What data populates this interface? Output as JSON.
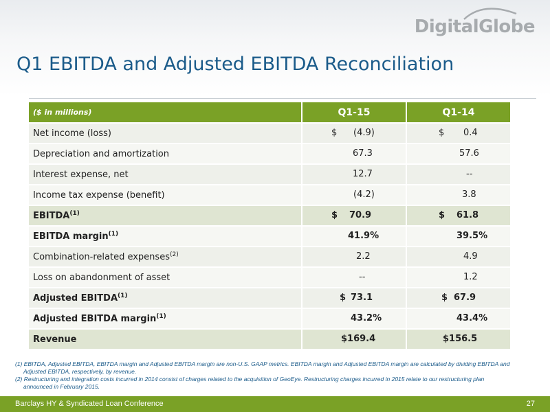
{
  "brand": {
    "logo_text": "DigitalGlobe"
  },
  "title": "Q1 EBITDA and Adjusted EBITDA Reconciliation",
  "table": {
    "header": {
      "label": "($ in millions)",
      "col1": "Q1-15",
      "col2": "Q1-14"
    },
    "rows": [
      {
        "label": "Net income (loss)",
        "sup": "",
        "c1_cur": "$",
        "c1": "(4.9)",
        "c2_cur": "$",
        "c2": "0.4"
      },
      {
        "label": "Depreciation and amortization",
        "sup": "",
        "c1_cur": "",
        "c1": "67.3",
        "c2_cur": "",
        "c2": "57.6"
      },
      {
        "label": "Interest expense, net",
        "sup": "",
        "c1_cur": "",
        "c1": "12.7",
        "c2_cur": "",
        "c2": "--"
      },
      {
        "label": "Income tax expense (benefit)",
        "sup": "",
        "c1_cur": "",
        "c1": "(4.2)",
        "c2_cur": "",
        "c2": "3.8"
      },
      {
        "label": "EBITDA",
        "sup": "(1)",
        "c1_cur": "$",
        "c1": "70.9",
        "c2_cur": "$",
        "c2": "61.8"
      },
      {
        "label": "EBITDA margin",
        "sup": "(1)",
        "c1_cur": "",
        "c1": "41.9%",
        "c2_cur": "",
        "c2": "39.5%"
      },
      {
        "label": "Combination-related expenses",
        "sup": "(2)",
        "c1_cur": "",
        "c1": "2.2",
        "c2_cur": "",
        "c2": "4.9"
      },
      {
        "label": "Loss on abandonment of asset",
        "sup": "",
        "c1_cur": "",
        "c1": "--",
        "c2_cur": "",
        "c2": "1.2"
      },
      {
        "label": "Adjusted EBITDA",
        "sup": "(1)",
        "c1_cur": "$",
        "c1": "73.1",
        "c2_cur": "$",
        "c2": "67.9"
      },
      {
        "label": "Adjusted EBITDA margin",
        "sup": "(1)",
        "c1_cur": "",
        "c1": "43.2%",
        "c2_cur": "",
        "c2": "43.4%"
      },
      {
        "label": "Revenue",
        "sup": "",
        "c1_cur": "",
        "c1": "$169.4",
        "c2_cur": "",
        "c2": "$156.5"
      }
    ]
  },
  "footnotes": {
    "n1_line1": "(1) EBITDA, Adjusted EBITDA, EBITDA margin and Adjusted EBITDA margin are non-U.S. GAAP metrics.  EBITDA margin and Adjusted EBITDA margin are calculated by dividing EBITDA and",
    "n1_line2": "Adjusted EBITDA, respectively, by revenue.",
    "n2_line1": "(2) Restructuring and integration costs incurred in 2014 consist of charges related to the acquisition of GeoEye. Restructuring charges incurred in 2015 relate to our restructuring plan",
    "n2_line2": "announced in February 2015."
  },
  "footer": {
    "conference": "Barclays HY & Syndicated Loan Conference",
    "page": "27"
  },
  "colors": {
    "accent_green": "#7aa126",
    "title_blue": "#1b5b8a",
    "logo_gray": "#a7abae"
  }
}
